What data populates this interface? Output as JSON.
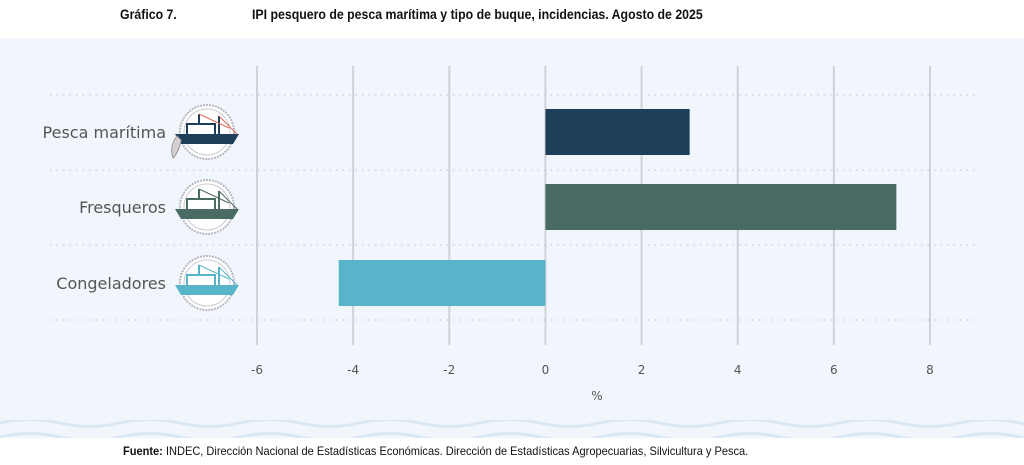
{
  "header": {
    "figure_label": "Gráfico 7.",
    "title": "IPI pesquero de pesca marítima y tipo de buque, incidencias. Agosto de 2025"
  },
  "chart_data": {
    "type": "bar",
    "orientation": "horizontal",
    "title": "IPI pesquero de pesca marítima y tipo de buque, incidencias. Agosto de 2025",
    "categories": [
      "Pesca marítima",
      "Fresqueros",
      "Congeladores"
    ],
    "values": [
      3.0,
      7.3,
      -4.3
    ],
    "colors": [
      "#1d3f5a",
      "#4a6b63",
      "#58b5c9"
    ],
    "xlabel": "%",
    "ylabel": "",
    "xlim": [
      -6,
      8
    ],
    "xticks": [
      "-6",
      "-4",
      "-2",
      "0",
      "2",
      "4",
      "6",
      "8"
    ],
    "grid": true,
    "category_icons": [
      "fishing-boat-icon",
      "fresh-fish-trawler-icon",
      "freezer-trawler-icon"
    ]
  },
  "footer": {
    "source_label": "Fuente:",
    "source_text": " INDEC, Dirección Nacional de Estadísticas Económicas. Dirección de Estadísticas Agropecuarias, Silvicultura y Pesca."
  }
}
